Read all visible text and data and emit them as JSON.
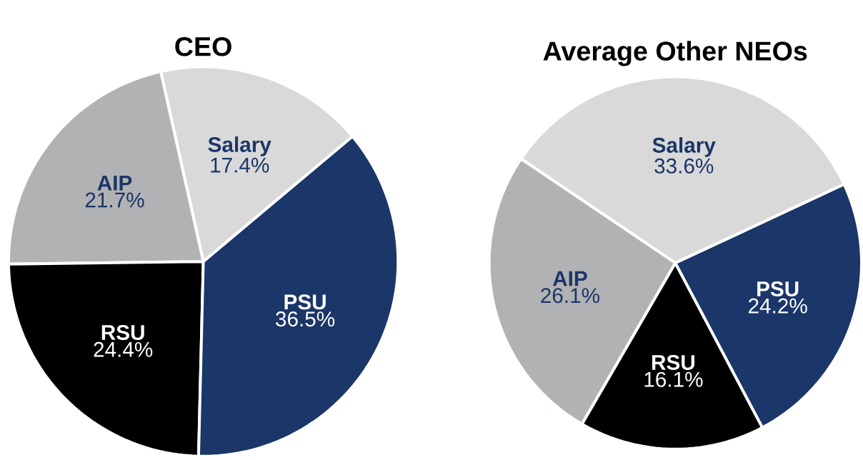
{
  "chart_data": [
    {
      "type": "pie",
      "title": "CEO",
      "categories": [
        "Salary",
        "AIP",
        "RSU",
        "PSU"
      ],
      "values": [
        17.4,
        21.7,
        24.4,
        36.5
      ],
      "colors": [
        "#d9d9da",
        "#b1b2b4",
        "#000000",
        "#1b3668"
      ],
      "value_labels": [
        "17.4%",
        "21.7%",
        "24.4%",
        "36.5%"
      ]
    },
    {
      "type": "pie",
      "title": "Average Other NEOs",
      "categories": [
        "Salary",
        "AIP",
        "RSU",
        "PSU"
      ],
      "values": [
        33.6,
        26.1,
        16.1,
        24.2
      ],
      "colors": [
        "#d9d9da",
        "#b1b2b4",
        "#000000",
        "#1b3668"
      ],
      "value_labels": [
        "33.6%",
        "26.1%",
        "16.1%",
        "24.2%"
      ]
    }
  ]
}
